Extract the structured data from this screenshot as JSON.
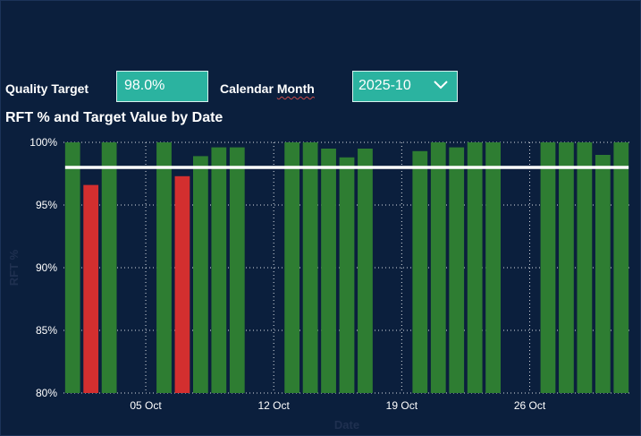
{
  "filters": {
    "quality_target_label": "Quality Target",
    "quality_target_value": "98.0%",
    "calendar_month_label_part1": "Calendar ",
    "calendar_month_label_part2": "Month",
    "calendar_month_value": "2025-10"
  },
  "colors": {
    "background": "#0b1f3d",
    "bar_pass": "#2e7d32",
    "bar_fail": "#d32f2f",
    "target_line": "#ffffff",
    "filter_bg": "#2bb3a0"
  },
  "icons": {
    "dropdown": "chevron-down-icon"
  },
  "chart_data": {
    "type": "bar",
    "title": "RFT % and Target Value by Date",
    "xlabel": "Date",
    "ylabel": "RFT %",
    "ylim": [
      80,
      100
    ],
    "yticks": [
      "80%",
      "85%",
      "90%",
      "95%",
      "100%"
    ],
    "xticks": [
      {
        "day": 5,
        "label": "05 Oct"
      },
      {
        "day": 12,
        "label": "12 Oct"
      },
      {
        "day": 19,
        "label": "19 Oct"
      },
      {
        "day": 26,
        "label": "26 Oct"
      }
    ],
    "day_range": [
      0.5,
      31.5
    ],
    "target": 98.0,
    "series": [
      {
        "name": "RFT %",
        "points": [
          {
            "day": 1,
            "value": 100.0
          },
          {
            "day": 2,
            "value": 96.6
          },
          {
            "day": 3,
            "value": 100.0
          },
          {
            "day": 6,
            "value": 100.0
          },
          {
            "day": 7,
            "value": 97.3
          },
          {
            "day": 8,
            "value": 98.9
          },
          {
            "day": 9,
            "value": 99.6
          },
          {
            "day": 10,
            "value": 99.6
          },
          {
            "day": 13,
            "value": 100.0
          },
          {
            "day": 14,
            "value": 100.0
          },
          {
            "day": 15,
            "value": 99.5
          },
          {
            "day": 16,
            "value": 98.8
          },
          {
            "day": 17,
            "value": 99.5
          },
          {
            "day": 20,
            "value": 99.3
          },
          {
            "day": 21,
            "value": 100.0
          },
          {
            "day": 22,
            "value": 99.6
          },
          {
            "day": 23,
            "value": 100.0
          },
          {
            "day": 24,
            "value": 100.0
          },
          {
            "day": 27,
            "value": 100.0
          },
          {
            "day": 28,
            "value": 100.0
          },
          {
            "day": 29,
            "value": 100.0
          },
          {
            "day": 30,
            "value": 99.0
          },
          {
            "day": 31,
            "value": 100.0
          }
        ]
      },
      {
        "name": "Target Value",
        "value": 98.0
      }
    ]
  }
}
